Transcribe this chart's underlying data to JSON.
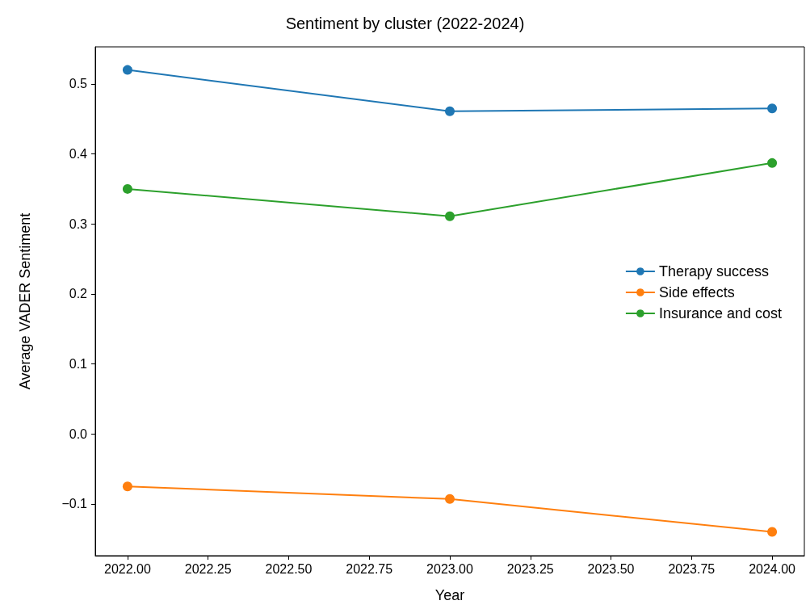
{
  "chart_data": {
    "type": "line",
    "title": "Sentiment by cluster (2022-2024)",
    "xlabel": "Year",
    "ylabel": "Average VADER Sentiment",
    "x": [
      2022,
      2023,
      2024
    ],
    "series": [
      {
        "name": "Therapy success",
        "color": "#1f77b4",
        "values": [
          0.52,
          0.461,
          0.465
        ]
      },
      {
        "name": "Side effects",
        "color": "#ff7f0e",
        "values": [
          -0.075,
          -0.093,
          -0.14
        ]
      },
      {
        "name": "Insurance and cost",
        "color": "#2ca02c",
        "values": [
          0.35,
          0.311,
          0.387
        ]
      }
    ],
    "xlim": [
      2021.9,
      2024.1
    ],
    "xticks": [
      {
        "value": 2022,
        "label": "2022.00"
      },
      {
        "value": 2022.25,
        "label": "2022.25"
      },
      {
        "value": 2022.5,
        "label": "2022.50"
      },
      {
        "value": 2022.75,
        "label": "2022.75"
      },
      {
        "value": 2023,
        "label": "2023.00"
      },
      {
        "value": 2023.25,
        "label": "2023.25"
      },
      {
        "value": 2023.5,
        "label": "2023.50"
      },
      {
        "value": 2023.75,
        "label": "2023.75"
      },
      {
        "value": 2024,
        "label": "2024.00"
      }
    ],
    "ylim": [
      -0.174,
      0.553
    ],
    "yticks": [
      {
        "value": -0.1,
        "label": "−0.1"
      },
      {
        "value": 0,
        "label": "0.0"
      },
      {
        "value": 0.1,
        "label": "0.1"
      },
      {
        "value": 0.2,
        "label": "0.2"
      },
      {
        "value": 0.3,
        "label": "0.3"
      },
      {
        "value": 0.4,
        "label": "0.4"
      },
      {
        "value": 0.5,
        "label": "0.5"
      }
    ],
    "legend": "right",
    "marker": "circle",
    "line_style": "solid",
    "grid": false
  }
}
